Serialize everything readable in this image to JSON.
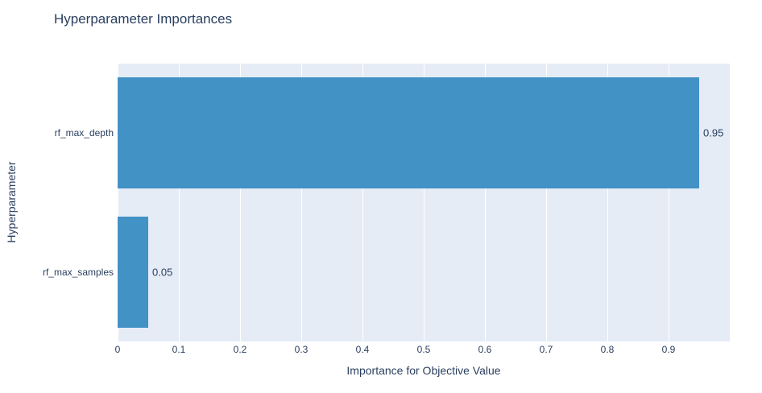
{
  "chart_data": {
    "type": "bar",
    "orientation": "horizontal",
    "title": "Hyperparameter Importances",
    "categories": [
      "rf_max_depth",
      "rf_max_samples"
    ],
    "values": [
      0.95,
      0.05
    ],
    "value_labels": [
      "0.95",
      "0.05"
    ],
    "xlabel": "Importance for Objective Value",
    "ylabel": "Hyperparameter",
    "xlim": [
      0,
      1.0
    ],
    "x_tick_values": [
      0,
      0.1,
      0.2,
      0.3,
      0.4,
      0.5,
      0.6,
      0.7,
      0.8,
      0.9
    ],
    "x_tick_labels": [
      "0",
      "0.1",
      "0.2",
      "0.3",
      "0.4",
      "0.5",
      "0.6",
      "0.7",
      "0.8",
      "0.9"
    ],
    "grid": true,
    "legend": false,
    "colors": {
      "bar": "#4292c6",
      "plot_background": "#e5ecf6",
      "gridline": "#ffffff",
      "text": "#2a3f5f"
    }
  }
}
